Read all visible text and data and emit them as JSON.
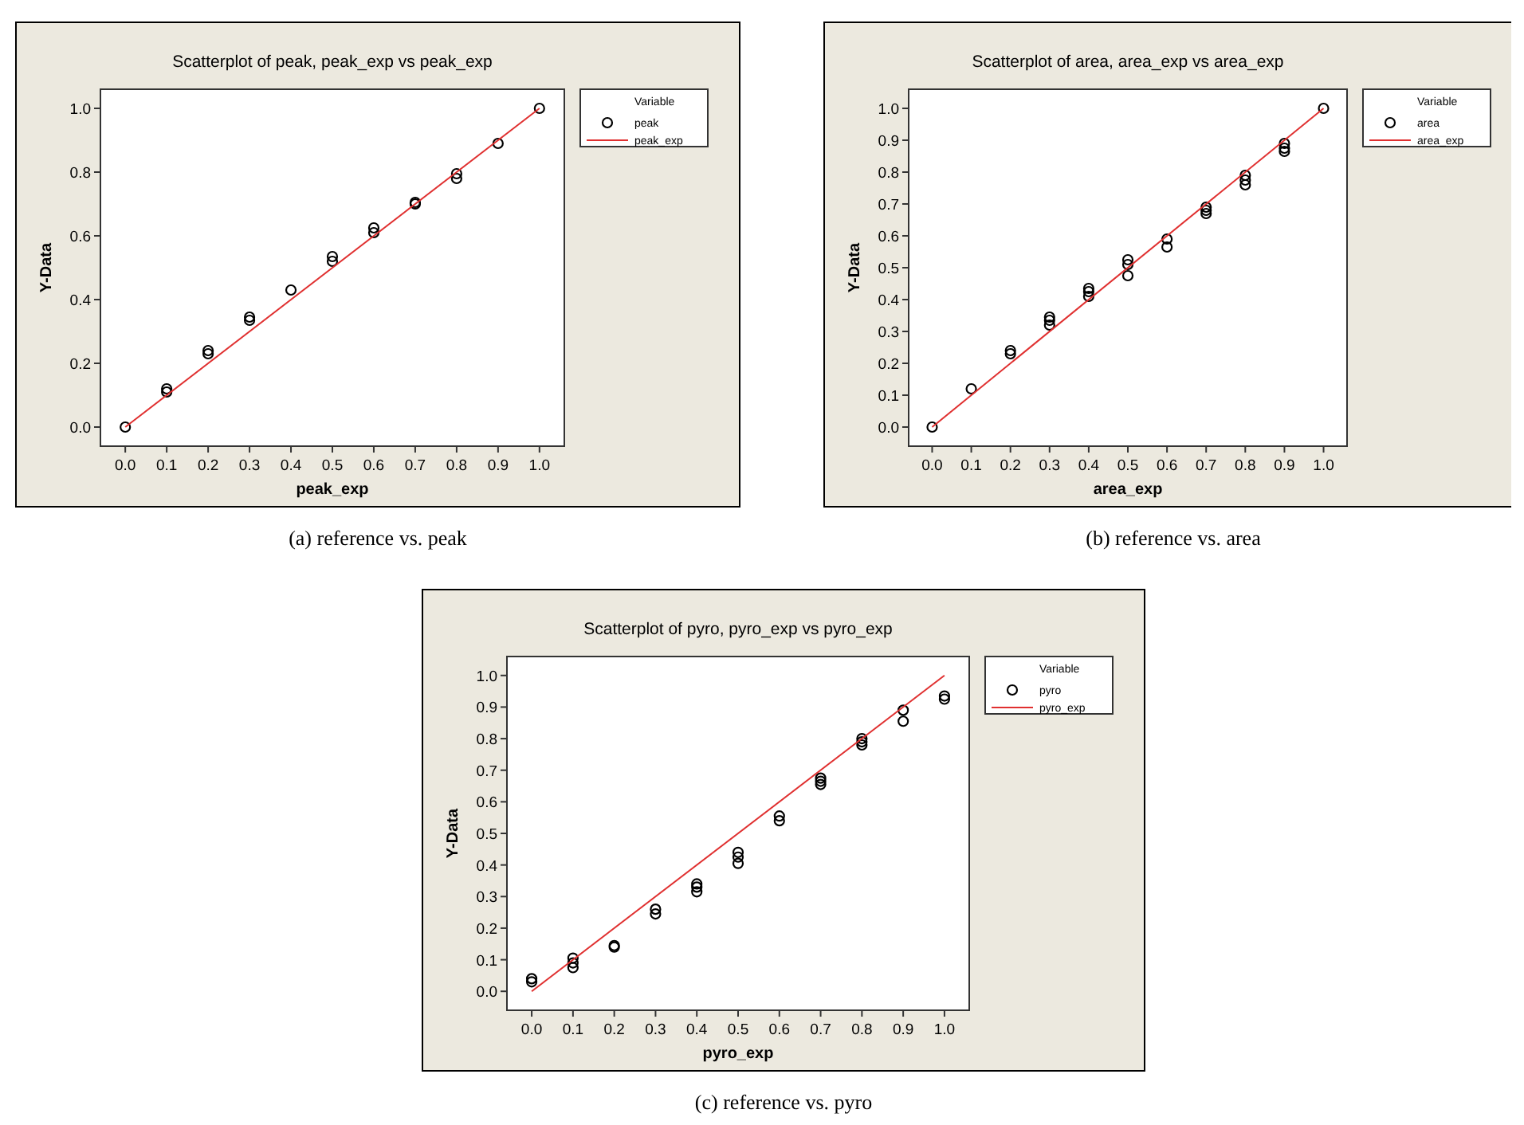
{
  "chart_data": [
    {
      "type": "scatter",
      "title": "Scatterplot of peak, peak_exp vs peak_exp",
      "xlabel": "peak_exp",
      "ylabel": "Y-Data",
      "legend_title": "Variable",
      "legend": "right",
      "grid": false,
      "xlim": [
        -0.06,
        1.06
      ],
      "ylim": [
        -0.06,
        1.06
      ],
      "xticks": [
        {
          "value": 0,
          "label": "0.0"
        },
        {
          "value": 0.1,
          "label": "0.1"
        },
        {
          "value": 0.2,
          "label": "0.2"
        },
        {
          "value": 0.3,
          "label": "0.3"
        },
        {
          "value": 0.4,
          "label": "0.4"
        },
        {
          "value": 0.5,
          "label": "0.5"
        },
        {
          "value": 0.6,
          "label": "0.6"
        },
        {
          "value": 0.7,
          "label": "0.7"
        },
        {
          "value": 0.8,
          "label": "0.8"
        },
        {
          "value": 0.9,
          "label": "0.9"
        },
        {
          "value": 1,
          "label": "1.0"
        }
      ],
      "yticks": [
        {
          "value": 0,
          "label": "0.0"
        },
        {
          "value": 0.2,
          "label": "0.2"
        },
        {
          "value": 0.4,
          "label": "0.4"
        },
        {
          "value": 0.6,
          "label": "0.6"
        },
        {
          "value": 0.8,
          "label": "0.8"
        },
        {
          "value": 1,
          "label": "1.0"
        }
      ],
      "series": [
        {
          "name": "peak",
          "type": "scatter",
          "marker": "circle",
          "color": "#000000",
          "x": [
            0,
            0.1,
            0.1,
            0.2,
            0.2,
            0.3,
            0.3,
            0.4,
            0.5,
            0.5,
            0.6,
            0.6,
            0.7,
            0.7,
            0.8,
            0.8,
            0.9,
            1
          ],
          "values": [
            0,
            0.11,
            0.12,
            0.23,
            0.24,
            0.335,
            0.345,
            0.43,
            0.52,
            0.535,
            0.61,
            0.625,
            0.7,
            0.705,
            0.78,
            0.795,
            0.89,
            1
          ]
        },
        {
          "name": "peak_exp",
          "type": "line",
          "marker": "none",
          "color": "#e03030",
          "x": [
            0,
            1
          ],
          "values": [
            0,
            1
          ]
        }
      ],
      "annotations": [
        "(a) reference vs. peak"
      ]
    },
    {
      "type": "scatter",
      "title": "Scatterplot of area, area_exp vs area_exp",
      "xlabel": "area_exp",
      "ylabel": "Y-Data",
      "legend_title": "Variable",
      "legend": "right",
      "grid": false,
      "xlim": [
        -0.06,
        1.06
      ],
      "ylim": [
        -0.06,
        1.06
      ],
      "xticks": [
        {
          "value": 0,
          "label": "0.0"
        },
        {
          "value": 0.1,
          "label": "0.1"
        },
        {
          "value": 0.2,
          "label": "0.2"
        },
        {
          "value": 0.3,
          "label": "0.3"
        },
        {
          "value": 0.4,
          "label": "0.4"
        },
        {
          "value": 0.5,
          "label": "0.5"
        },
        {
          "value": 0.6,
          "label": "0.6"
        },
        {
          "value": 0.7,
          "label": "0.7"
        },
        {
          "value": 0.8,
          "label": "0.8"
        },
        {
          "value": 0.9,
          "label": "0.9"
        },
        {
          "value": 1,
          "label": "1.0"
        }
      ],
      "yticks": [
        {
          "value": 0,
          "label": "0.0"
        },
        {
          "value": 0.1,
          "label": "0.1"
        },
        {
          "value": 0.2,
          "label": "0.2"
        },
        {
          "value": 0.3,
          "label": "0.3"
        },
        {
          "value": 0.4,
          "label": "0.4"
        },
        {
          "value": 0.5,
          "label": "0.5"
        },
        {
          "value": 0.6,
          "label": "0.6"
        },
        {
          "value": 0.7,
          "label": "0.7"
        },
        {
          "value": 0.8,
          "label": "0.8"
        },
        {
          "value": 0.9,
          "label": "0.9"
        },
        {
          "value": 1,
          "label": "1.0"
        }
      ],
      "series": [
        {
          "name": "area",
          "type": "scatter",
          "marker": "circle",
          "color": "#000000",
          "x": [
            0,
            0.1,
            0.2,
            0.2,
            0.3,
            0.3,
            0.3,
            0.4,
            0.4,
            0.4,
            0.5,
            0.5,
            0.5,
            0.6,
            0.6,
            0.7,
            0.7,
            0.7,
            0.8,
            0.8,
            0.8,
            0.9,
            0.9,
            0.9,
            1
          ],
          "values": [
            0,
            0.12,
            0.23,
            0.24,
            0.32,
            0.335,
            0.345,
            0.41,
            0.425,
            0.435,
            0.475,
            0.51,
            0.525,
            0.565,
            0.59,
            0.67,
            0.68,
            0.69,
            0.76,
            0.775,
            0.79,
            0.865,
            0.875,
            0.89,
            1
          ]
        },
        {
          "name": "area_exp",
          "type": "line",
          "marker": "none",
          "color": "#e03030",
          "x": [
            0,
            1
          ],
          "values": [
            0,
            1
          ]
        }
      ],
      "annotations": [
        "(b) reference vs. area"
      ]
    },
    {
      "type": "scatter",
      "title": "Scatterplot of pyro, pyro_exp vs pyro_exp",
      "xlabel": "pyro_exp",
      "ylabel": "Y-Data",
      "legend_title": "Variable",
      "legend": "right",
      "grid": false,
      "xlim": [
        -0.06,
        1.06
      ],
      "ylim": [
        -0.06,
        1.06
      ],
      "xticks": [
        {
          "value": 0,
          "label": "0.0"
        },
        {
          "value": 0.1,
          "label": "0.1"
        },
        {
          "value": 0.2,
          "label": "0.2"
        },
        {
          "value": 0.3,
          "label": "0.3"
        },
        {
          "value": 0.4,
          "label": "0.4"
        },
        {
          "value": 0.5,
          "label": "0.5"
        },
        {
          "value": 0.6,
          "label": "0.6"
        },
        {
          "value": 0.7,
          "label": "0.7"
        },
        {
          "value": 0.8,
          "label": "0.8"
        },
        {
          "value": 0.9,
          "label": "0.9"
        },
        {
          "value": 1,
          "label": "1.0"
        }
      ],
      "yticks": [
        {
          "value": 0,
          "label": "0.0"
        },
        {
          "value": 0.1,
          "label": "0.1"
        },
        {
          "value": 0.2,
          "label": "0.2"
        },
        {
          "value": 0.3,
          "label": "0.3"
        },
        {
          "value": 0.4,
          "label": "0.4"
        },
        {
          "value": 0.5,
          "label": "0.5"
        },
        {
          "value": 0.6,
          "label": "0.6"
        },
        {
          "value": 0.7,
          "label": "0.7"
        },
        {
          "value": 0.8,
          "label": "0.8"
        },
        {
          "value": 0.9,
          "label": "0.9"
        },
        {
          "value": 1,
          "label": "1.0"
        }
      ],
      "series": [
        {
          "name": "pyro",
          "type": "scatter",
          "marker": "circle",
          "color": "#000000",
          "x": [
            0,
            0,
            0.1,
            0.1,
            0.1,
            0.2,
            0.2,
            0.3,
            0.3,
            0.4,
            0.4,
            0.4,
            0.5,
            0.5,
            0.5,
            0.6,
            0.6,
            0.7,
            0.7,
            0.7,
            0.8,
            0.8,
            0.8,
            0.9,
            0.9,
            1,
            1
          ],
          "values": [
            0.03,
            0.04,
            0.075,
            0.09,
            0.105,
            0.14,
            0.145,
            0.245,
            0.26,
            0.315,
            0.33,
            0.34,
            0.405,
            0.425,
            0.44,
            0.54,
            0.555,
            0.655,
            0.665,
            0.675,
            0.78,
            0.79,
            0.8,
            0.855,
            0.89,
            0.925,
            0.935
          ]
        },
        {
          "name": "pyro_exp",
          "type": "line",
          "marker": "none",
          "color": "#e03030",
          "x": [
            0,
            1
          ],
          "values": [
            0,
            1
          ]
        }
      ],
      "annotations": [
        "(c) reference vs. pyro"
      ]
    }
  ]
}
